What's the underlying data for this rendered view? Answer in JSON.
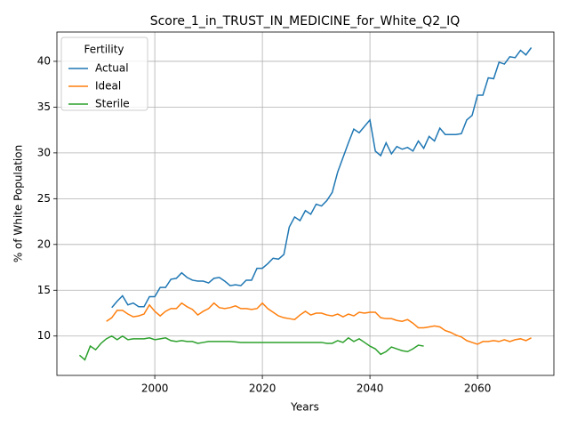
{
  "chart_data": {
    "type": "line",
    "title": "Score_1_in_TRUST_IN_MEDICINE_for_White_Q2_IQ",
    "x_label": "Years",
    "y_label": "% of White Population",
    "legend_title": "Fertility",
    "legend_loc": "upper left",
    "grid": true,
    "x": [
      1986,
      1987,
      1988,
      1989,
      1990,
      1991,
      1992,
      1993,
      1994,
      1995,
      1996,
      1997,
      1998,
      1999,
      2000,
      2001,
      2002,
      2003,
      2004,
      2005,
      2006,
      2007,
      2008,
      2009,
      2010,
      2011,
      2012,
      2013,
      2014,
      2015,
      2016,
      2017,
      2018,
      2019,
      2020,
      2021,
      2022,
      2023,
      2024,
      2025,
      2026,
      2027,
      2028,
      2029,
      2030,
      2031,
      2032,
      2033,
      2034,
      2035,
      2036,
      2037,
      2038,
      2039,
      2040,
      2041,
      2042,
      2043,
      2044,
      2045,
      2046,
      2047,
      2048,
      2049,
      2050,
      2051,
      2052,
      2053,
      2054,
      2055,
      2056,
      2057,
      2058,
      2059,
      2060,
      2061,
      2062,
      2063,
      2064,
      2065,
      2066,
      2067,
      2068,
      2069,
      2070
    ],
    "series": [
      {
        "name": "Actual",
        "color": "#1f77b4",
        "values": [
          null,
          null,
          null,
          null,
          null,
          null,
          13.1,
          13.8,
          14.4,
          13.4,
          13.6,
          13.2,
          13.2,
          14.3,
          14.3,
          15.3,
          15.3,
          16.2,
          16.3,
          16.9,
          16.4,
          16.1,
          16.0,
          16.0,
          15.8,
          16.3,
          16.4,
          16.0,
          15.5,
          15.6,
          15.5,
          16.1,
          16.1,
          17.4,
          17.4,
          17.9,
          18.5,
          18.4,
          18.9,
          21.9,
          23.0,
          22.6,
          23.7,
          23.3,
          24.4,
          24.2,
          24.8,
          25.7,
          27.9,
          29.5,
          31.1,
          32.6,
          32.2,
          32.9,
          33.6,
          30.2,
          29.7,
          31.1,
          29.9,
          30.7,
          30.4,
          30.6,
          30.2,
          31.3,
          30.5,
          31.8,
          31.3,
          32.7,
          32.0,
          32.0,
          32.0,
          32.1,
          33.6,
          34.1,
          36.3,
          36.3,
          38.2,
          38.1,
          39.9,
          39.7,
          40.5,
          40.4,
          41.2,
          40.7,
          41.5
        ]
      },
      {
        "name": "Ideal",
        "color": "#ff7f0e",
        "values": [
          null,
          null,
          null,
          null,
          null,
          11.6,
          12.0,
          12.8,
          12.8,
          12.4,
          12.1,
          12.2,
          12.4,
          13.4,
          12.7,
          12.2,
          12.7,
          13.0,
          13.0,
          13.6,
          13.2,
          12.9,
          12.3,
          12.7,
          13.0,
          13.6,
          13.1,
          13.0,
          13.1,
          13.3,
          13.0,
          13.0,
          12.9,
          13.0,
          13.6,
          13.0,
          12.6,
          12.2,
          12.0,
          11.9,
          11.8,
          12.3,
          12.7,
          12.3,
          12.5,
          12.5,
          12.3,
          12.2,
          12.4,
          12.1,
          12.4,
          12.2,
          12.6,
          12.5,
          12.6,
          12.6,
          12.0,
          11.9,
          11.9,
          11.7,
          11.6,
          11.8,
          11.4,
          10.9,
          10.9,
          11.0,
          11.1,
          11.0,
          10.6,
          10.4,
          10.1,
          9.9,
          9.5,
          9.3,
          9.1,
          9.4,
          9.4,
          9.5,
          9.4,
          9.6,
          9.4,
          9.6,
          9.7,
          9.5,
          9.8
        ]
      },
      {
        "name": "Sterile",
        "color": "#2ca02c",
        "values": [
          7.9,
          7.4,
          8.9,
          8.5,
          9.2,
          9.7,
          10.0,
          9.6,
          10.0,
          9.6,
          9.7,
          9.7,
          9.7,
          9.8,
          9.6,
          9.7,
          9.8,
          9.5,
          9.4,
          9.5,
          9.4,
          9.4,
          9.2,
          9.3,
          9.4,
          9.4,
          9.4,
          9.4,
          9.4,
          9.35,
          9.3,
          9.3,
          9.3,
          9.3,
          9.3,
          9.3,
          9.3,
          9.3,
          9.3,
          9.3,
          9.3,
          9.3,
          9.3,
          9.3,
          9.3,
          9.3,
          9.2,
          9.2,
          9.5,
          9.3,
          9.8,
          9.4,
          9.7,
          9.3,
          8.9,
          8.6,
          8.0,
          8.3,
          8.8,
          8.6,
          8.4,
          8.3,
          8.6,
          9.0,
          8.9,
          null,
          null,
          null,
          null,
          null,
          null,
          null,
          null,
          null,
          null,
          null,
          null,
          null,
          null,
          null,
          null,
          null,
          null,
          null,
          null
        ]
      }
    ],
    "xlim": [
      1981.8,
      2074.2
    ],
    "xticks": [
      2000,
      2020,
      2040,
      2060
    ],
    "ylim": [
      5.7,
      43.2
    ],
    "yticks": [
      10,
      15,
      20,
      25,
      30,
      35,
      40
    ]
  }
}
